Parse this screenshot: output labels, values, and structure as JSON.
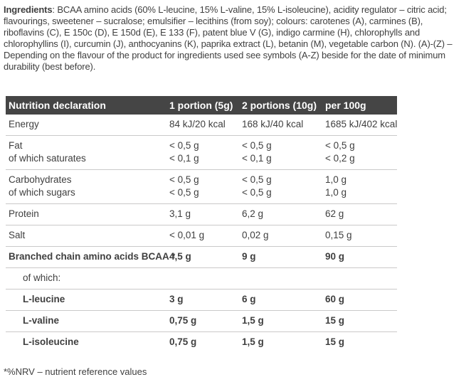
{
  "ingredients": {
    "label": "Ingredients",
    "lines": [
      ": BCAA amino acids (60% L-leucine, 15% L-valine, 15% L-isoleucine), acidity regulator – citric acid;",
      "flavourings, sweetener – sucralose; emulsifier – lecithins (from soy); colours: carotenes (A), carmines (B),",
      "riboflavins (C), E 150c (D), E 150d (E), E 133 (F), patent blue V (G), indigo carmine (H), chlorophylls and",
      "chlorophyllins (I), curcumin (J), anthocyanins (K), paprika extract (L), betanin (M), vegetable carbon (N). (A)-(Z) –",
      "Depending on the flavour of the product for ingredients used see symbols (A-Z) beside for the date of minimum",
      "durability (best before)."
    ]
  },
  "table": {
    "headers": [
      "Nutrition declaration",
      "1 portion (5g)",
      "2 portions (10g)",
      "per 100g"
    ],
    "rows": [
      {
        "label": "Energy",
        "v1": "84 kJ/20 kcal",
        "v2": "168 kJ/40 kcal",
        "v3": "1685 kJ/402 kcal"
      },
      {
        "label": "Fat",
        "v1": "< 0,5 g",
        "v2": "< 0,5 g",
        "v3": "< 0,5 g"
      },
      {
        "label": "of which saturates",
        "v1": "< 0,1 g",
        "v2": "< 0,1 g",
        "v3": "< 0,2 g"
      },
      {
        "label": "Carbohydrates",
        "v1": "< 0,5 g",
        "v2": "< 0,5 g",
        "v3": "1,0 g"
      },
      {
        "label": "of which sugars",
        "v1": "< 0,5 g",
        "v2": "< 0,5 g",
        "v3": "1,0 g"
      },
      {
        "label": "Protein",
        "v1": "3,1 g",
        "v2": "6,2 g",
        "v3": "62 g"
      },
      {
        "label": "Salt",
        "v1": "< 0,01 g",
        "v2": "0,02 g",
        "v3": "0,15 g"
      },
      {
        "label": "Branched chain amino acids BCAA *",
        "v1": "4,5 g",
        "v2": "9 g",
        "v3": "90 g"
      },
      {
        "label": "of which:",
        "v1": "",
        "v2": "",
        "v3": ""
      },
      {
        "label": "L-leucine",
        "v1": "3 g",
        "v2": "6 g",
        "v3": "60 g"
      },
      {
        "label": "L-valine",
        "v1": "0,75 g",
        "v2": "1,5 g",
        "v3": "15 g"
      },
      {
        "label": "L-isoleucine",
        "v1": "0,75 g",
        "v2": "1,5 g",
        "v3": "15 g"
      }
    ]
  },
  "footnote": "*%NRV – nutrient reference values",
  "colors": {
    "header_background": "#454545",
    "header_text": "#ffffff",
    "body_text": "#3f3f3f",
    "separator": "#cac9c9",
    "page_background": "#ffffff"
  }
}
